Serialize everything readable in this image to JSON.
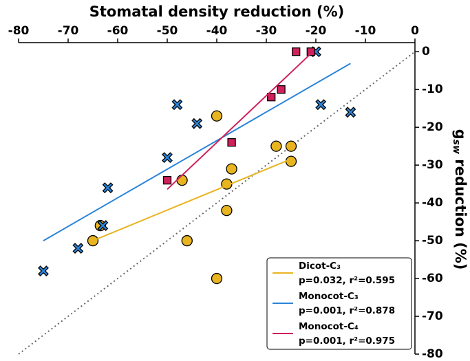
{
  "chart_data": {
    "type": "scatter",
    "title": "Stomatal density reduction (%)",
    "y_label": [
      "g",
      "sw",
      " reduction (%)"
    ],
    "xlim": [
      -80,
      0
    ],
    "ylim": [
      -80,
      2.4
    ],
    "xticks": [
      -80,
      -70,
      -60,
      -50,
      -40,
      -30,
      -20,
      -10,
      0
    ],
    "yticks": [
      0,
      -10,
      -20,
      -30,
      -40,
      -50,
      -60,
      -70,
      -80
    ],
    "legend": "lower right",
    "series": [
      {
        "name": "Dicot-C₃",
        "stats": "p=0.032, r²=0.595",
        "color": "#e8b420",
        "marker": "circle",
        "x": [
          -65,
          -63.5,
          -47,
          -46,
          -40,
          -40,
          -38,
          -38,
          -37,
          -28,
          -25,
          -25
        ],
        "values": [
          -50,
          -46,
          -34,
          -50,
          -17,
          -60,
          -35,
          -42,
          -31,
          -25,
          -25,
          -29
        ],
        "fit": {
          "x": [
            -65,
            -25
          ],
          "y": [
            -50,
            -28.4
          ]
        }
      },
      {
        "name": "Monocot-C₃",
        "stats": "p=0.001, r²=0.878",
        "color": "#2a84d8",
        "marker": "x",
        "x": [
          -75,
          -68,
          -62,
          -63,
          -48,
          -50,
          -44,
          -20,
          -19,
          -13
        ],
        "values": [
          -58,
          -52,
          -36,
          -46,
          -14,
          -28,
          -19,
          0,
          -14,
          -16
        ],
        "fit": {
          "x": [
            -75,
            -13
          ],
          "y": [
            -50,
            -3.1
          ]
        }
      },
      {
        "name": "Monocot-C₄",
        "stats": "p=0.001, r²=0.975",
        "color": "#d0205c",
        "marker": "square",
        "x": [
          -50,
          -37,
          -29,
          -27,
          -24,
          -21
        ],
        "values": [
          -34,
          -24,
          -12,
          -10,
          0,
          0
        ],
        "fit": {
          "x": [
            -50,
            -21
          ],
          "y": [
            -36.4,
            -0.5
          ]
        }
      }
    ]
  }
}
